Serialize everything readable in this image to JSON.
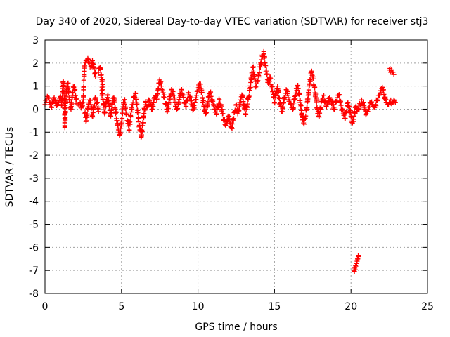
{
  "chart_data": {
    "type": "scatter",
    "title": "Day 340 of 2020, Sidereal Day-to-day VTEC variation (SDTVAR) for receiver stj3",
    "xlabel": "GPS time / hours",
    "ylabel": "SDTVAR / TECUs",
    "xlim": [
      0,
      25
    ],
    "ylim": [
      -8,
      3
    ],
    "xticks": [
      0,
      5,
      10,
      15,
      20,
      25
    ],
    "yticks": [
      3,
      2,
      1,
      0,
      -1,
      -2,
      -3,
      -4,
      -5,
      -6,
      -7,
      -8
    ],
    "xtick_labels": [
      "0",
      "5",
      "10",
      "15",
      "20",
      "25"
    ],
    "ytick_labels": [
      "3",
      "2",
      "1",
      "0",
      "-1",
      "-2",
      "-3",
      "-4",
      "-5",
      "-6",
      "-7",
      "-8"
    ],
    "grid": true,
    "marker": "+",
    "series": [
      {
        "name": "SDTVAR",
        "color": "#ff0000",
        "points": [
          [
            0.0,
            0.2
          ],
          [
            0.1,
            0.4
          ],
          [
            0.2,
            0.5
          ],
          [
            0.3,
            0.3
          ],
          [
            0.4,
            0.1
          ],
          [
            0.5,
            0.3
          ],
          [
            0.6,
            0.5
          ],
          [
            0.7,
            0.4
          ],
          [
            0.8,
            0.2
          ],
          [
            0.9,
            0.3
          ],
          [
            1.0,
            0.5
          ],
          [
            1.1,
            0.2
          ],
          [
            1.15,
            0.9
          ],
          [
            1.2,
            1.2
          ],
          [
            1.25,
            0.6
          ],
          [
            1.3,
            -0.4
          ],
          [
            1.3,
            -0.8
          ],
          [
            1.35,
            0.3
          ],
          [
            1.4,
            0.8
          ],
          [
            1.5,
            1.1
          ],
          [
            1.6,
            0.4
          ],
          [
            1.7,
            0.0
          ],
          [
            1.8,
            0.7
          ],
          [
            1.9,
            1.0
          ],
          [
            2.0,
            0.6
          ],
          [
            2.1,
            0.2
          ],
          [
            2.3,
            0.3
          ],
          [
            2.4,
            0.1
          ],
          [
            2.5,
            0.4
          ],
          [
            2.55,
            1.3
          ],
          [
            2.6,
            1.9
          ],
          [
            2.7,
            2.1
          ],
          [
            2.8,
            2.2
          ],
          [
            2.9,
            2.0
          ],
          [
            3.0,
            1.9
          ],
          [
            3.1,
            2.1
          ],
          [
            3.2,
            1.8
          ],
          [
            3.3,
            1.4
          ],
          [
            2.6,
            -0.2
          ],
          [
            2.7,
            -0.5
          ],
          [
            2.8,
            0.0
          ],
          [
            2.9,
            0.4
          ],
          [
            3.0,
            0.2
          ],
          [
            3.1,
            -0.3
          ],
          [
            3.2,
            0.1
          ],
          [
            3.3,
            0.5
          ],
          [
            3.4,
            0.3
          ],
          [
            3.5,
            -0.1
          ],
          [
            3.5,
            1.6
          ],
          [
            3.6,
            1.8
          ],
          [
            3.7,
            1.3
          ],
          [
            3.8,
            1.0
          ],
          [
            3.7,
            0.8
          ],
          [
            3.8,
            0.4
          ],
          [
            3.9,
            -0.2
          ],
          [
            4.0,
            0.3
          ],
          [
            4.1,
            0.6
          ],
          [
            4.2,
            0.1
          ],
          [
            4.3,
            -0.3
          ],
          [
            4.4,
            0.2
          ],
          [
            4.5,
            0.5
          ],
          [
            4.6,
            0.0
          ],
          [
            4.7,
            -0.5
          ],
          [
            4.8,
            -0.9
          ],
          [
            4.9,
            -1.1
          ],
          [
            5.0,
            -0.6
          ],
          [
            5.1,
            0.1
          ],
          [
            5.2,
            0.4
          ],
          [
            5.3,
            -0.2
          ],
          [
            5.4,
            -0.5
          ],
          [
            5.5,
            -0.9
          ],
          [
            5.6,
            -0.3
          ],
          [
            5.7,
            0.2
          ],
          [
            5.8,
            0.5
          ],
          [
            5.9,
            0.7
          ],
          [
            6.0,
            0.2
          ],
          [
            6.1,
            -0.4
          ],
          [
            6.2,
            -0.9
          ],
          [
            6.3,
            -1.2
          ],
          [
            6.4,
            -0.6
          ],
          [
            6.5,
            0.0
          ],
          [
            6.6,
            0.3
          ],
          [
            6.7,
            0.1
          ],
          [
            6.8,
            0.4
          ],
          [
            6.9,
            0.2
          ],
          [
            7.0,
            0.0
          ],
          [
            7.1,
            0.3
          ],
          [
            7.2,
            0.6
          ],
          [
            7.3,
            0.4
          ],
          [
            7.4,
            0.9
          ],
          [
            7.5,
            1.3
          ],
          [
            7.6,
            1.0
          ],
          [
            7.7,
            0.8
          ],
          [
            7.8,
            0.5
          ],
          [
            7.9,
            0.2
          ],
          [
            8.0,
            -0.1
          ],
          [
            8.1,
            0.3
          ],
          [
            8.2,
            0.6
          ],
          [
            8.3,
            0.8
          ],
          [
            8.4,
            0.6
          ],
          [
            8.5,
            0.3
          ],
          [
            8.6,
            0.0
          ],
          [
            8.7,
            0.2
          ],
          [
            8.8,
            0.5
          ],
          [
            8.9,
            0.8
          ],
          [
            9.0,
            0.6
          ],
          [
            9.1,
            0.3
          ],
          [
            9.2,
            0.1
          ],
          [
            9.3,
            0.4
          ],
          [
            9.4,
            0.7
          ],
          [
            9.5,
            0.5
          ],
          [
            9.6,
            0.2
          ],
          [
            9.7,
            0.0
          ],
          [
            9.8,
            0.3
          ],
          [
            9.9,
            0.6
          ],
          [
            10.0,
            0.8
          ],
          [
            10.1,
            1.1
          ],
          [
            10.2,
            0.9
          ],
          [
            10.3,
            0.5
          ],
          [
            10.4,
            0.1
          ],
          [
            10.5,
            -0.2
          ],
          [
            10.6,
            0.1
          ],
          [
            10.7,
            0.5
          ],
          [
            10.8,
            0.7
          ],
          [
            10.9,
            0.4
          ],
          [
            11.0,
            0.2
          ],
          [
            11.1,
            0.0
          ],
          [
            11.2,
            -0.2
          ],
          [
            11.3,
            0.1
          ],
          [
            11.4,
            0.4
          ],
          [
            11.5,
            0.2
          ],
          [
            11.6,
            -0.2
          ],
          [
            11.7,
            -0.5
          ],
          [
            11.8,
            -0.7
          ],
          [
            11.9,
            -0.6
          ],
          [
            12.0,
            -0.3
          ],
          [
            12.1,
            -0.6
          ],
          [
            12.2,
            -0.8
          ],
          [
            12.3,
            -0.5
          ],
          [
            12.4,
            -0.1
          ],
          [
            12.5,
            0.2
          ],
          [
            12.6,
            -0.2
          ],
          [
            12.7,
            0.1
          ],
          [
            12.8,
            0.4
          ],
          [
            12.9,
            0.6
          ],
          [
            13.0,
            0.2
          ],
          [
            13.1,
            -0.2
          ],
          [
            13.2,
            0.1
          ],
          [
            13.3,
            0.5
          ],
          [
            13.4,
            0.9
          ],
          [
            13.5,
            1.4
          ],
          [
            13.6,
            1.8
          ],
          [
            13.7,
            1.3
          ],
          [
            13.8,
            1.0
          ],
          [
            13.9,
            1.2
          ],
          [
            14.0,
            1.6
          ],
          [
            14.1,
            2.0
          ],
          [
            14.2,
            2.3
          ],
          [
            14.3,
            2.5
          ],
          [
            14.4,
            1.9
          ],
          [
            14.5,
            1.5
          ],
          [
            14.6,
            1.1
          ],
          [
            14.7,
            1.4
          ],
          [
            14.8,
            1.0
          ],
          [
            14.9,
            0.7
          ],
          [
            15.0,
            0.3
          ],
          [
            15.1,
            0.8
          ],
          [
            15.2,
            1.0
          ],
          [
            15.3,
            0.5
          ],
          [
            15.4,
            0.1
          ],
          [
            15.5,
            -0.1
          ],
          [
            15.6,
            0.3
          ],
          [
            15.7,
            0.6
          ],
          [
            15.8,
            0.8
          ],
          [
            15.9,
            0.5
          ],
          [
            16.0,
            0.4
          ],
          [
            16.1,
            0.2
          ],
          [
            16.2,
            0.0
          ],
          [
            16.3,
            0.4
          ],
          [
            16.4,
            0.7
          ],
          [
            16.5,
            1.0
          ],
          [
            16.6,
            0.7
          ],
          [
            16.7,
            0.2
          ],
          [
            16.8,
            -0.3
          ],
          [
            16.9,
            -0.6
          ],
          [
            17.0,
            -0.4
          ],
          [
            17.1,
            0.0
          ],
          [
            17.2,
            0.6
          ],
          [
            17.3,
            1.1
          ],
          [
            17.4,
            1.6
          ],
          [
            17.5,
            1.4
          ],
          [
            17.6,
            1.0
          ],
          [
            17.7,
            0.5
          ],
          [
            17.8,
            0.0
          ],
          [
            17.9,
            -0.3
          ],
          [
            18.0,
            0.0
          ],
          [
            18.1,
            0.4
          ],
          [
            18.2,
            0.6
          ],
          [
            18.3,
            0.3
          ],
          [
            18.4,
            0.1
          ],
          [
            18.5,
            0.2
          ],
          [
            18.6,
            0.5
          ],
          [
            18.7,
            0.4
          ],
          [
            18.8,
            0.2
          ],
          [
            18.9,
            0.0
          ],
          [
            19.0,
            0.3
          ],
          [
            19.1,
            0.5
          ],
          [
            19.2,
            0.6
          ],
          [
            19.3,
            0.3
          ],
          [
            19.4,
            0.0
          ],
          [
            19.5,
            -0.2
          ],
          [
            19.6,
            -0.4
          ],
          [
            19.7,
            -0.1
          ],
          [
            19.8,
            0.3
          ],
          [
            19.9,
            0.1
          ],
          [
            20.0,
            -0.3
          ],
          [
            20.1,
            -0.6
          ],
          [
            20.2,
            -0.3
          ],
          [
            20.3,
            0.1
          ],
          [
            20.4,
            -0.1
          ],
          [
            20.5,
            0.0
          ],
          [
            20.6,
            0.2
          ],
          [
            20.7,
            0.4
          ],
          [
            20.8,
            0.3
          ],
          [
            20.9,
            0.0
          ],
          [
            21.0,
            -0.2
          ],
          [
            21.1,
            -0.1
          ],
          [
            21.2,
            0.1
          ],
          [
            21.3,
            0.3
          ],
          [
            21.4,
            0.2
          ],
          [
            21.5,
            0.1
          ],
          [
            21.6,
            0.2
          ],
          [
            21.7,
            0.4
          ],
          [
            21.8,
            0.6
          ],
          [
            21.9,
            0.7
          ],
          [
            22.0,
            0.9
          ],
          [
            22.1,
            0.8
          ],
          [
            22.2,
            0.5
          ],
          [
            22.3,
            0.3
          ],
          [
            22.4,
            0.2
          ],
          [
            22.5,
            0.3
          ],
          [
            22.6,
            0.4
          ],
          [
            22.7,
            0.3
          ],
          [
            22.8,
            0.4
          ],
          [
            22.9,
            0.3
          ],
          [
            22.5,
            1.7
          ],
          [
            22.6,
            1.6
          ],
          [
            22.7,
            1.6
          ],
          [
            22.8,
            1.5
          ],
          [
            20.2,
            -7.0
          ],
          [
            20.25,
            -6.9
          ],
          [
            20.3,
            -6.8
          ],
          [
            20.35,
            -6.7
          ],
          [
            20.4,
            -6.6
          ],
          [
            20.45,
            -6.5
          ],
          [
            20.5,
            -6.4
          ]
        ]
      }
    ]
  }
}
